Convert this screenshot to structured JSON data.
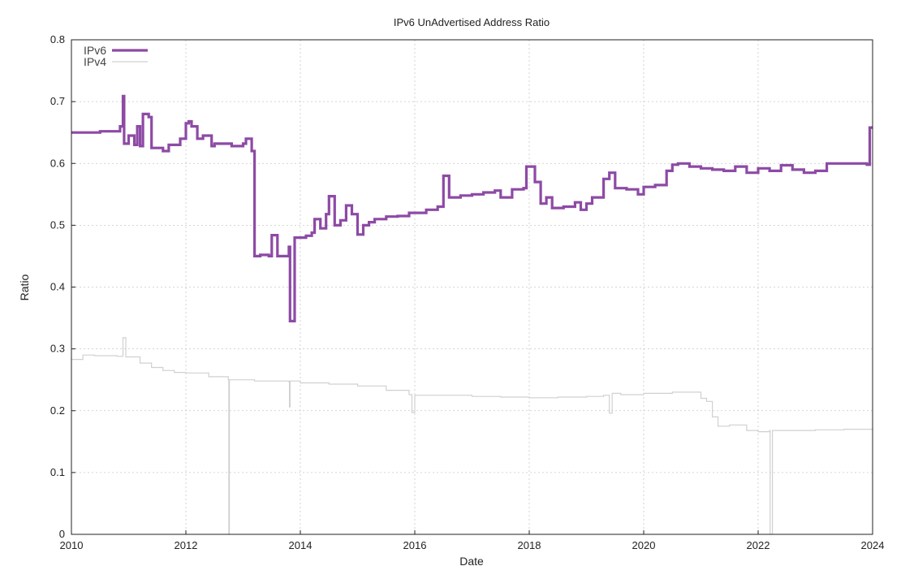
{
  "chart_data": {
    "type": "line",
    "title": "IPv6 UnAdvertised Address Ratio",
    "xlabel": "Date",
    "ylabel": "Ratio",
    "xlim": [
      2010,
      2024
    ],
    "ylim": [
      0,
      0.8
    ],
    "x_ticks": [
      "2010",
      "2012",
      "2014",
      "2016",
      "2018",
      "2020",
      "2022",
      "2024"
    ],
    "y_ticks": [
      "0",
      "0.1",
      "0.2",
      "0.3",
      "0.4",
      "0.5",
      "0.6",
      "0.7",
      "0.8"
    ],
    "grid": true,
    "legend_position": "top-left",
    "series": [
      {
        "name": "IPv6",
        "color": "#8d4aa5",
        "x": [
          2010.0,
          2010.5,
          2010.85,
          2010.9,
          2010.92,
          2011.0,
          2011.1,
          2011.15,
          2011.2,
          2011.25,
          2011.35,
          2011.4,
          2011.6,
          2011.7,
          2011.9,
          2012.0,
          2012.05,
          2012.1,
          2012.2,
          2012.3,
          2012.45,
          2012.5,
          2012.8,
          2013.0,
          2013.05,
          2013.15,
          2013.2,
          2013.3,
          2013.45,
          2013.5,
          2013.6,
          2013.8,
          2013.82,
          2013.9,
          2014.1,
          2014.2,
          2014.25,
          2014.35,
          2014.45,
          2014.5,
          2014.6,
          2014.7,
          2014.8,
          2014.9,
          2015.0,
          2015.1,
          2015.2,
          2015.3,
          2015.5,
          2015.7,
          2015.9,
          2016.0,
          2016.2,
          2016.4,
          2016.5,
          2016.6,
          2016.8,
          2017.0,
          2017.2,
          2017.4,
          2017.5,
          2017.7,
          2017.9,
          2017.95,
          2018.1,
          2018.2,
          2018.3,
          2018.4,
          2018.6,
          2018.8,
          2018.9,
          2019.0,
          2019.1,
          2019.3,
          2019.4,
          2019.5,
          2019.7,
          2019.9,
          2020.0,
          2020.2,
          2020.4,
          2020.5,
          2020.6,
          2020.8,
          2021.0,
          2021.2,
          2021.4,
          2021.6,
          2021.8,
          2022.0,
          2022.2,
          2022.4,
          2022.6,
          2022.8,
          2023.0,
          2023.2,
          2023.4,
          2023.6,
          2023.9,
          2023.95,
          2024.0
        ],
        "y": [
          0.65,
          0.652,
          0.66,
          0.709,
          0.632,
          0.645,
          0.63,
          0.66,
          0.628,
          0.68,
          0.675,
          0.625,
          0.62,
          0.63,
          0.64,
          0.665,
          0.668,
          0.66,
          0.64,
          0.645,
          0.628,
          0.632,
          0.628,
          0.632,
          0.64,
          0.62,
          0.45,
          0.452,
          0.45,
          0.484,
          0.45,
          0.465,
          0.345,
          0.48,
          0.483,
          0.488,
          0.51,
          0.495,
          0.518,
          0.547,
          0.5,
          0.508,
          0.532,
          0.518,
          0.485,
          0.5,
          0.505,
          0.51,
          0.514,
          0.515,
          0.52,
          0.52,
          0.525,
          0.53,
          0.58,
          0.545,
          0.548,
          0.55,
          0.553,
          0.556,
          0.545,
          0.558,
          0.56,
          0.595,
          0.57,
          0.535,
          0.545,
          0.528,
          0.53,
          0.537,
          0.525,
          0.535,
          0.545,
          0.575,
          0.585,
          0.56,
          0.558,
          0.55,
          0.562,
          0.565,
          0.588,
          0.598,
          0.6,
          0.595,
          0.592,
          0.59,
          0.588,
          0.595,
          0.585,
          0.592,
          0.588,
          0.597,
          0.59,
          0.585,
          0.588,
          0.6,
          0.6,
          0.6,
          0.598,
          0.658,
          0.658
        ]
      },
      {
        "name": "IPv4",
        "color": "#d0d0d0",
        "x": [
          2010.0,
          2010.2,
          2010.4,
          2010.6,
          2010.8,
          2010.9,
          2010.95,
          2011.0,
          2011.2,
          2011.4,
          2011.6,
          2011.8,
          2012.0,
          2012.4,
          2012.74,
          2012.75,
          2012.76,
          2012.8,
          2013.2,
          2013.6,
          2013.8,
          2013.81,
          2013.82,
          2014.0,
          2014.5,
          2015.0,
          2015.5,
          2015.9,
          2015.95,
          2016.0,
          2016.5,
          2017.0,
          2017.5,
          2018.0,
          2018.5,
          2019.0,
          2019.3,
          2019.4,
          2019.45,
          2019.6,
          2020.0,
          2020.5,
          2021.0,
          2021.1,
          2021.2,
          2021.3,
          2021.5,
          2021.8,
          2022.0,
          2022.2,
          2022.21,
          2022.25,
          2022.3,
          2022.5,
          2023.0,
          2023.5,
          2024.0
        ],
        "y": [
          0.283,
          0.29,
          0.289,
          0.289,
          0.288,
          0.318,
          0.287,
          0.287,
          0.277,
          0.27,
          0.265,
          0.262,
          0.261,
          0.255,
          0.25,
          0.0,
          0.25,
          0.25,
          0.248,
          0.248,
          0.247,
          0.206,
          0.248,
          0.245,
          0.243,
          0.24,
          0.233,
          0.226,
          0.197,
          0.225,
          0.225,
          0.223,
          0.222,
          0.221,
          0.222,
          0.223,
          0.225,
          0.196,
          0.228,
          0.226,
          0.228,
          0.23,
          0.22,
          0.215,
          0.19,
          0.175,
          0.177,
          0.168,
          0.166,
          0.168,
          0.0,
          0.168,
          0.168,
          0.168,
          0.169,
          0.17,
          0.172
        ]
      }
    ]
  }
}
